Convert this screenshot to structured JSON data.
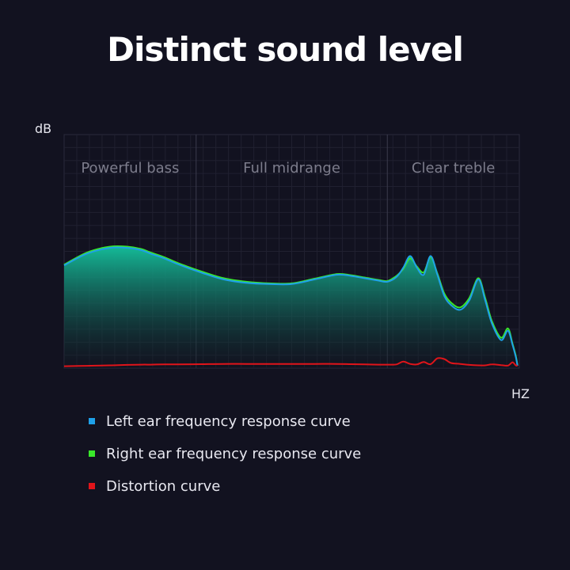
{
  "title": "Distinct sound level",
  "colors": {
    "background": "#121220",
    "left": "#1ea0e8",
    "right": "#39e82a",
    "distortion": "#e0141a",
    "fill_top": "#14b896",
    "fill_bottom": "#12141f"
  },
  "chart_data": {
    "type": "area",
    "ylabel": "dB",
    "xlabel": "HZ",
    "xlim": [
      0,
      100
    ],
    "ylim": [
      0,
      100
    ],
    "grid": true,
    "legend_position": "bottom",
    "regions": [
      {
        "label": "Powerful bass",
        "start": 0,
        "end": 29
      },
      {
        "label": "Full midrange",
        "start": 29,
        "end": 71
      },
      {
        "label": "Clear treble",
        "start": 71,
        "end": 100
      }
    ],
    "x": [
      0,
      5,
      10,
      14,
      17,
      19,
      22,
      25,
      30,
      35,
      40,
      45,
      50,
      55,
      60,
      63,
      66,
      69,
      71,
      73,
      74.5,
      76,
      77.5,
      79,
      80.5,
      82,
      83.5,
      85,
      87,
      89,
      91,
      92.5,
      94,
      96,
      97.5,
      98.5,
      99.2,
      99.6
    ],
    "series": [
      {
        "name": "Left ear frequency response curve",
        "values": [
          44,
          49,
          51.5,
          51.5,
          50.5,
          49,
          47,
          44.5,
          41,
          38,
          36.5,
          36,
          36,
          38,
          40,
          39.5,
          38.5,
          37.5,
          37,
          39,
          43,
          48,
          43,
          40,
          48,
          40,
          31,
          27,
          25,
          29,
          38,
          29,
          19,
          12,
          16,
          10,
          5,
          1
        ]
      },
      {
        "name": "Right ear frequency response curve",
        "values": [
          44.3,
          49.5,
          52,
          52,
          51,
          49.5,
          47.5,
          45,
          41.5,
          38.5,
          37,
          36.3,
          36.3,
          38.3,
          40.3,
          39.8,
          38.8,
          37.8,
          37.3,
          39.5,
          42.5,
          47,
          43.5,
          41,
          47.5,
          40.5,
          32,
          28,
          26,
          30,
          38.5,
          30,
          20,
          13,
          17,
          10.5,
          5.5,
          1.2
        ]
      },
      {
        "name": "Distortion curve",
        "values": [
          0.8,
          1,
          1.2,
          1.4,
          1.5,
          1.5,
          1.6,
          1.6,
          1.7,
          1.8,
          1.8,
          1.8,
          1.8,
          1.8,
          1.8,
          1.7,
          1.6,
          1.5,
          1.5,
          1.6,
          2.8,
          1.8,
          1.6,
          2.6,
          1.7,
          4.2,
          3.9,
          2.2,
          1.8,
          1.4,
          1.2,
          1.2,
          1.6,
          1.3,
          1.1,
          2.5,
          1.2,
          1
        ]
      }
    ]
  }
}
